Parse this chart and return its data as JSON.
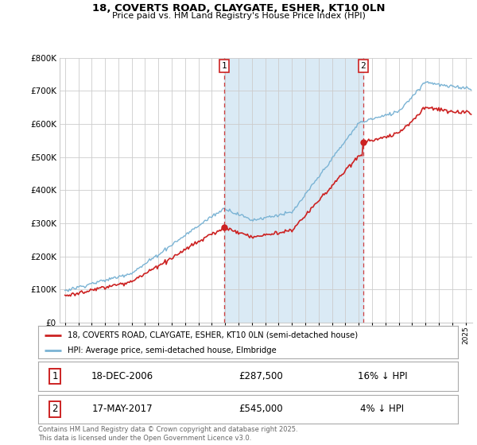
{
  "title_line1": "18, COVERTS ROAD, CLAYGATE, ESHER, KT10 0LN",
  "title_line2": "Price paid vs. HM Land Registry's House Price Index (HPI)",
  "background_color": "#ffffff",
  "plot_bg_color": "#ffffff",
  "grid_color": "#cccccc",
  "hpi_color": "#7ab3d4",
  "price_color": "#cc2222",
  "shade_color": "#daeaf5",
  "purchase1_date": "18-DEC-2006",
  "purchase1_price": 287500,
  "purchase1_label": "16% ↓ HPI",
  "purchase2_date": "17-MAY-2017",
  "purchase2_price": 545000,
  "purchase2_label": "4% ↓ HPI",
  "legend_label1": "18, COVERTS ROAD, CLAYGATE, ESHER, KT10 0LN (semi-detached house)",
  "legend_label2": "HPI: Average price, semi-detached house, Elmbridge",
  "footnote": "Contains HM Land Registry data © Crown copyright and database right 2025.\nThis data is licensed under the Open Government Licence v3.0.",
  "ylim_min": 0,
  "ylim_max": 800000,
  "yticks": [
    0,
    100000,
    200000,
    300000,
    400000,
    500000,
    600000,
    700000,
    800000
  ]
}
